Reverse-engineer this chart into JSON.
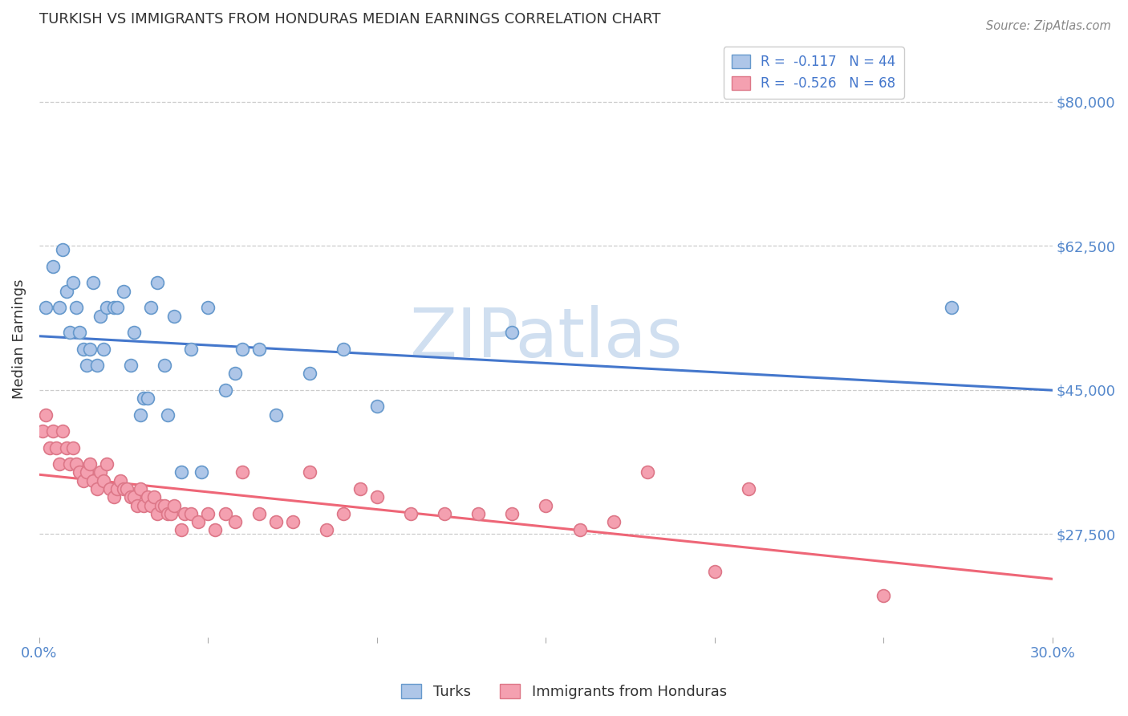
{
  "title": "TURKISH VS IMMIGRANTS FROM HONDURAS MEDIAN EARNINGS CORRELATION CHART",
  "source": "Source: ZipAtlas.com",
  "ylabel": "Median Earnings",
  "xlim": [
    0.0,
    0.3
  ],
  "ylim": [
    15000,
    87500
  ],
  "yticks": [
    27500,
    45000,
    62500,
    80000
  ],
  "ytick_labels": [
    "$27,500",
    "$45,000",
    "$62,500",
    "$80,000"
  ],
  "xtick_positions": [
    0.0,
    0.05,
    0.1,
    0.15,
    0.2,
    0.25,
    0.3
  ],
  "xtick_labels_shown": {
    "0.0": "0.0%",
    "0.30": "30.0%"
  },
  "legend_entries": [
    {
      "label": "R =  -0.117   N = 44",
      "color": "#aec6e8",
      "edge": "#6699cc"
    },
    {
      "label": "R =  -0.526   N = 68",
      "color": "#f4a0b0",
      "edge": "#dd7788"
    }
  ],
  "legend_labels": [
    "Turks",
    "Immigrants from Honduras"
  ],
  "turks_color": "#aec6e8",
  "turks_edge_color": "#6699cc",
  "honduras_color": "#f4a0b0",
  "honduras_edge_color": "#dd7788",
  "line_blue": "#4477cc",
  "line_pink": "#ee6677",
  "background_color": "#ffffff",
  "title_color": "#333333",
  "axis_label_color": "#333333",
  "ytick_color": "#5588cc",
  "xtick_color": "#5588cc",
  "watermark": "ZIPatlas",
  "watermark_color": "#d0dff0",
  "turks_x": [
    0.002,
    0.004,
    0.006,
    0.007,
    0.008,
    0.009,
    0.01,
    0.011,
    0.012,
    0.013,
    0.014,
    0.015,
    0.016,
    0.017,
    0.018,
    0.019,
    0.02,
    0.022,
    0.023,
    0.025,
    0.027,
    0.028,
    0.03,
    0.031,
    0.032,
    0.033,
    0.035,
    0.037,
    0.038,
    0.04,
    0.042,
    0.045,
    0.048,
    0.05,
    0.055,
    0.058,
    0.06,
    0.065,
    0.07,
    0.08,
    0.09,
    0.1,
    0.14,
    0.27
  ],
  "turks_y": [
    55000,
    60000,
    55000,
    62000,
    57000,
    52000,
    58000,
    55000,
    52000,
    50000,
    48000,
    50000,
    58000,
    48000,
    54000,
    50000,
    55000,
    55000,
    55000,
    57000,
    48000,
    52000,
    42000,
    44000,
    44000,
    55000,
    58000,
    48000,
    42000,
    54000,
    35000,
    50000,
    35000,
    55000,
    45000,
    47000,
    50000,
    50000,
    42000,
    47000,
    50000,
    43000,
    52000,
    55000
  ],
  "honduras_x": [
    0.001,
    0.002,
    0.003,
    0.004,
    0.005,
    0.006,
    0.007,
    0.008,
    0.009,
    0.01,
    0.011,
    0.012,
    0.013,
    0.014,
    0.015,
    0.016,
    0.017,
    0.018,
    0.019,
    0.02,
    0.021,
    0.022,
    0.023,
    0.024,
    0.025,
    0.026,
    0.027,
    0.028,
    0.029,
    0.03,
    0.031,
    0.032,
    0.033,
    0.034,
    0.035,
    0.036,
    0.037,
    0.038,
    0.039,
    0.04,
    0.042,
    0.043,
    0.045,
    0.047,
    0.05,
    0.052,
    0.055,
    0.058,
    0.06,
    0.065,
    0.07,
    0.075,
    0.08,
    0.085,
    0.09,
    0.095,
    0.1,
    0.11,
    0.12,
    0.13,
    0.14,
    0.15,
    0.16,
    0.17,
    0.18,
    0.2,
    0.21,
    0.25
  ],
  "honduras_y": [
    40000,
    42000,
    38000,
    40000,
    38000,
    36000,
    40000,
    38000,
    36000,
    38000,
    36000,
    35000,
    34000,
    35000,
    36000,
    34000,
    33000,
    35000,
    34000,
    36000,
    33000,
    32000,
    33000,
    34000,
    33000,
    33000,
    32000,
    32000,
    31000,
    33000,
    31000,
    32000,
    31000,
    32000,
    30000,
    31000,
    31000,
    30000,
    30000,
    31000,
    28000,
    30000,
    30000,
    29000,
    30000,
    28000,
    30000,
    29000,
    35000,
    30000,
    29000,
    29000,
    35000,
    28000,
    30000,
    33000,
    32000,
    30000,
    30000,
    30000,
    30000,
    31000,
    28000,
    29000,
    35000,
    23000,
    33000,
    20000
  ]
}
